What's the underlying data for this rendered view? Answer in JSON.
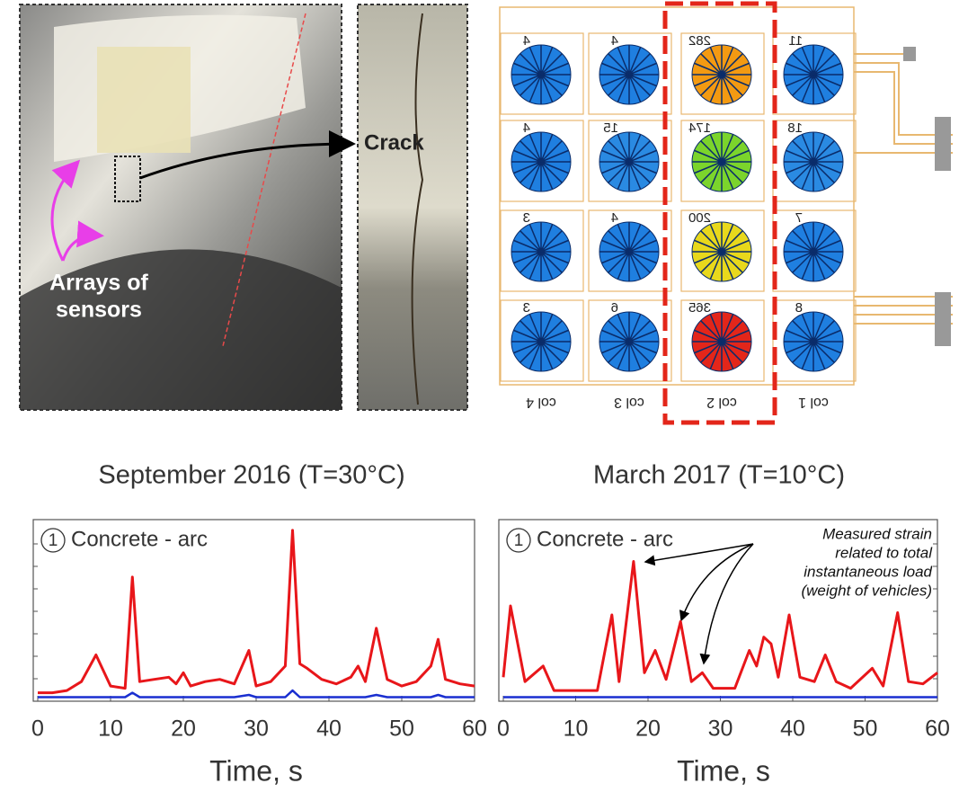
{
  "photos": {
    "crack_label": "Crack",
    "sensor_label": [
      "Arrays of",
      "sensors"
    ]
  },
  "sensor_array": {
    "rows": [
      [
        {
          "value": 4,
          "color": "#1f7fe0"
        },
        {
          "value": 4,
          "color": "#1f7fe0"
        },
        {
          "value": 282,
          "color": "#f39a12"
        },
        {
          "value": 11,
          "color": "#1f7fe0"
        }
      ],
      [
        {
          "value": 4,
          "color": "#1f7fe0"
        },
        {
          "value": 15,
          "color": "#2a8ae2"
        },
        {
          "value": 174,
          "color": "#7bd42c"
        },
        {
          "value": 18,
          "color": "#2a8ae2"
        }
      ],
      [
        {
          "value": 3,
          "color": "#1f7fe0"
        },
        {
          "value": 4,
          "color": "#1f7fe0"
        },
        {
          "value": 200,
          "color": "#e8d81c"
        },
        {
          "value": 7,
          "color": "#1f7fe0"
        }
      ],
      [
        {
          "value": 3,
          "color": "#1f7fe0"
        },
        {
          "value": 6,
          "color": "#1f7fe0"
        },
        {
          "value": 365,
          "color": "#e3261a"
        },
        {
          "value": 8,
          "color": "#1f7fe0"
        }
      ]
    ],
    "columns": [
      "col 4",
      "col 3",
      "col 2",
      "col 1"
    ]
  },
  "chart_data": [
    {
      "type": "line",
      "title": "September 2016 (T=30°C)",
      "xlabel": "Time, s",
      "marker": "1",
      "label": "Concrete - arc",
      "xlim": [
        0,
        60
      ],
      "xticks": [
        0,
        10,
        20,
        30,
        40,
        50,
        60
      ],
      "ylim": [
        0,
        8
      ],
      "x": [
        0,
        2,
        4,
        6,
        8,
        10,
        12,
        13,
        14,
        16,
        18,
        19,
        20,
        21,
        23,
        25,
        27,
        29,
        30,
        32,
        34,
        35,
        36,
        37,
        39,
        41,
        43,
        44,
        45,
        46.5,
        48,
        50,
        52,
        54,
        55,
        56,
        58,
        60
      ],
      "series": [
        {
          "color": "#e8161a",
          "values": [
            0.3,
            0.3,
            0.4,
            0.8,
            2.0,
            0.6,
            0.5,
            5.5,
            0.8,
            0.9,
            1.0,
            0.7,
            1.2,
            0.6,
            0.8,
            0.9,
            0.7,
            2.2,
            0.6,
            0.8,
            1.5,
            7.6,
            1.6,
            1.4,
            0.9,
            0.7,
            1.0,
            1.5,
            0.8,
            3.2,
            0.9,
            0.6,
            0.8,
            1.5,
            2.7,
            0.9,
            0.7,
            0.6
          ]
        },
        {
          "color": "#1a2fd0",
          "values": [
            0.1,
            0.1,
            0.1,
            0.1,
            0.1,
            0.1,
            0.1,
            0.3,
            0.1,
            0.1,
            0.1,
            0.1,
            0.1,
            0.1,
            0.1,
            0.1,
            0.1,
            0.2,
            0.1,
            0.1,
            0.1,
            0.4,
            0.1,
            0.1,
            0.1,
            0.1,
            0.1,
            0.1,
            0.1,
            0.2,
            0.1,
            0.1,
            0.1,
            0.1,
            0.2,
            0.1,
            0.1,
            0.1
          ]
        }
      ]
    },
    {
      "type": "line",
      "title": "March 2017 (T=10°C)",
      "xlabel": "Time, s",
      "marker": "1",
      "label": "Concrete - arc",
      "note": [
        "Measured strain",
        "related to total",
        "instantaneous load",
        "(weight of vehicles)"
      ],
      "xlim": [
        0,
        60
      ],
      "xticks": [
        0,
        10,
        20,
        30,
        40,
        50,
        60
      ],
      "ylim": [
        0,
        8
      ],
      "x": [
        0,
        1,
        3,
        5.5,
        7,
        10,
        13,
        15,
        16,
        18,
        19.5,
        21,
        22.5,
        24.5,
        26,
        27.5,
        29,
        32,
        34,
        35,
        36,
        37,
        38,
        39.5,
        41,
        43,
        44.5,
        46,
        48,
        51,
        52.5,
        54.5,
        56,
        58,
        60
      ],
      "series": [
        {
          "color": "#e8161a",
          "values": [
            1.0,
            4.2,
            0.8,
            1.5,
            0.4,
            0.4,
            0.4,
            3.8,
            0.8,
            6.2,
            1.2,
            2.2,
            0.9,
            3.5,
            0.8,
            1.2,
            0.5,
            0.5,
            2.2,
            1.5,
            2.8,
            2.5,
            1.0,
            3.8,
            1.0,
            0.8,
            2.0,
            0.8,
            0.5,
            1.4,
            0.6,
            3.9,
            0.8,
            0.7,
            1.2
          ]
        },
        {
          "color": "#1a2fd0",
          "values": [
            0.1,
            0.1,
            0.1,
            0.1,
            0.1,
            0.1,
            0.1,
            0.1,
            0.1,
            0.1,
            0.1,
            0.1,
            0.1,
            0.1,
            0.1,
            0.1,
            0.1,
            0.1,
            0.1,
            0.1,
            0.1,
            0.1,
            0.1,
            0.1,
            0.1,
            0.1,
            0.1,
            0.1,
            0.1,
            0.1,
            0.1,
            0.1,
            0.1,
            0.1,
            0.1
          ]
        }
      ]
    }
  ]
}
